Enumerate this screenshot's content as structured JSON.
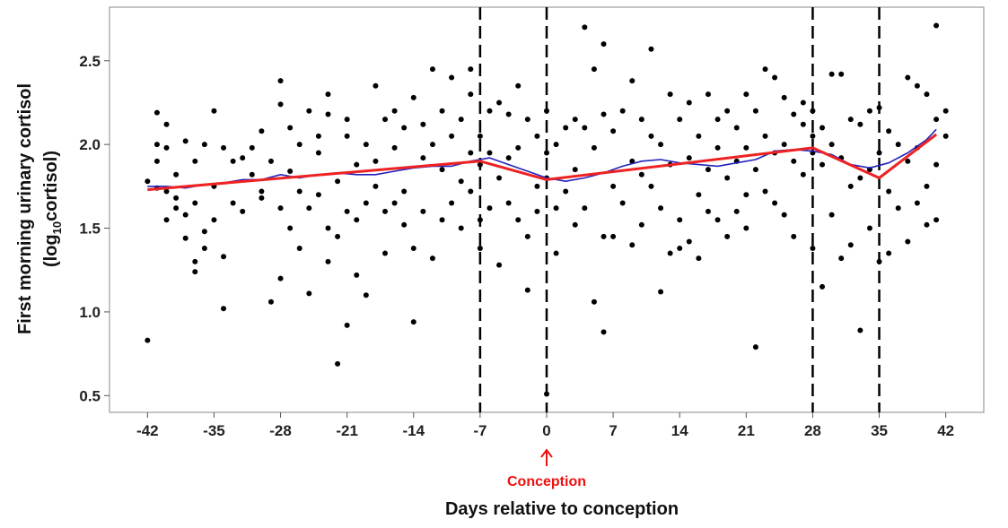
{
  "chart_data": {
    "type": "scatter",
    "title": "",
    "xlabel": "Days relative to conception",
    "ylabel": {
      "line1": "First morning urinary cortisol",
      "line2_prefix": "(log",
      "line2_sub": "10",
      "line2_suffix": "cortisol)"
    },
    "xlim": [
      -46,
      46
    ],
    "ylim": [
      0.4,
      2.82
    ],
    "xticks": [
      -42,
      -35,
      -28,
      -21,
      -14,
      -7,
      0,
      7,
      14,
      21,
      28,
      35,
      42
    ],
    "yticks": [
      0.5,
      1.0,
      1.5,
      2.0,
      2.5
    ],
    "ytick_labels": [
      "0.5",
      "1.0",
      "1.5",
      "2.0",
      "2.5"
    ],
    "vlines": [
      -7,
      0,
      28,
      35
    ],
    "annotation": {
      "text": "Conception",
      "x": 0,
      "color": "#ee1111"
    },
    "series": [
      {
        "style": "scatter",
        "color": "#000000",
        "points": [
          [
            -42,
            1.78
          ],
          [
            -42,
            0.83
          ],
          [
            -41,
            1.74
          ],
          [
            -41,
            1.9
          ],
          [
            -41,
            2.0
          ],
          [
            -41,
            2.19
          ],
          [
            -40,
            1.72
          ],
          [
            -40,
            1.55
          ],
          [
            -40,
            1.98
          ],
          [
            -40,
            2.12
          ],
          [
            -39,
            1.68
          ],
          [
            -39,
            1.82
          ],
          [
            -39,
            1.62
          ],
          [
            -38,
            1.44
          ],
          [
            -38,
            1.58
          ],
          [
            -38,
            2.02
          ],
          [
            -37,
            1.9
          ],
          [
            -37,
            1.65
          ],
          [
            -37,
            1.3
          ],
          [
            -37,
            1.24
          ],
          [
            -36,
            2.0
          ],
          [
            -36,
            1.48
          ],
          [
            -36,
            1.38
          ],
          [
            -35,
            2.2
          ],
          [
            -35,
            1.75
          ],
          [
            -35,
            1.55
          ],
          [
            -34,
            1.98
          ],
          [
            -34,
            1.02
          ],
          [
            -34,
            1.33
          ],
          [
            -33,
            1.9
          ],
          [
            -33,
            1.65
          ],
          [
            -32,
            1.92
          ],
          [
            -32,
            1.6
          ],
          [
            -31,
            1.98
          ],
          [
            -31,
            1.82
          ],
          [
            -30,
            2.08
          ],
          [
            -30,
            1.72
          ],
          [
            -30,
            1.68
          ],
          [
            -29,
            1.9
          ],
          [
            -29,
            1.06
          ],
          [
            -28,
            2.38
          ],
          [
            -28,
            2.24
          ],
          [
            -28,
            1.62
          ],
          [
            -28,
            1.2
          ],
          [
            -27,
            2.1
          ],
          [
            -27,
            1.84
          ],
          [
            -27,
            1.5
          ],
          [
            -26,
            2.0
          ],
          [
            -26,
            1.72
          ],
          [
            -26,
            1.38
          ],
          [
            -25,
            2.2
          ],
          [
            -25,
            1.62
          ],
          [
            -25,
            1.11
          ],
          [
            -24,
            2.05
          ],
          [
            -24,
            1.95
          ],
          [
            -24,
            1.7
          ],
          [
            -23,
            2.3
          ],
          [
            -23,
            2.18
          ],
          [
            -23,
            1.5
          ],
          [
            -23,
            1.3
          ],
          [
            -22,
            0.69
          ],
          [
            -22,
            1.78
          ],
          [
            -22,
            1.45
          ],
          [
            -21,
            2.15
          ],
          [
            -21,
            2.05
          ],
          [
            -21,
            1.6
          ],
          [
            -21,
            0.92
          ],
          [
            -20,
            1.88
          ],
          [
            -20,
            1.55
          ],
          [
            -20,
            1.22
          ],
          [
            -19,
            2.0
          ],
          [
            -19,
            1.65
          ],
          [
            -19,
            1.1
          ],
          [
            -18,
            2.35
          ],
          [
            -18,
            1.9
          ],
          [
            -18,
            1.75
          ],
          [
            -17,
            2.15
          ],
          [
            -17,
            1.6
          ],
          [
            -17,
            1.35
          ],
          [
            -16,
            2.2
          ],
          [
            -16,
            1.98
          ],
          [
            -16,
            1.65
          ],
          [
            -15,
            2.1
          ],
          [
            -15,
            1.72
          ],
          [
            -15,
            1.52
          ],
          [
            -14,
            2.28
          ],
          [
            -14,
            1.38
          ],
          [
            -14,
            0.94
          ],
          [
            -13,
            2.12
          ],
          [
            -13,
            1.92
          ],
          [
            -13,
            1.6
          ],
          [
            -12,
            2.45
          ],
          [
            -12,
            2.0
          ],
          [
            -12,
            1.32
          ],
          [
            -11,
            2.2
          ],
          [
            -11,
            1.85
          ],
          [
            -11,
            1.55
          ],
          [
            -10,
            2.4
          ],
          [
            -10,
            2.05
          ],
          [
            -10,
            1.65
          ],
          [
            -9,
            2.15
          ],
          [
            -9,
            1.78
          ],
          [
            -9,
            1.5
          ],
          [
            -8,
            2.45
          ],
          [
            -8,
            2.3
          ],
          [
            -8,
            1.95
          ],
          [
            -8,
            1.72
          ],
          [
            -7,
            2.05
          ],
          [
            -7,
            1.88
          ],
          [
            -7,
            1.55
          ],
          [
            -7,
            1.38
          ],
          [
            -6,
            2.2
          ],
          [
            -6,
            1.95
          ],
          [
            -6,
            1.62
          ],
          [
            -5,
            2.25
          ],
          [
            -5,
            1.8
          ],
          [
            -5,
            1.28
          ],
          [
            -4,
            2.18
          ],
          [
            -4,
            1.92
          ],
          [
            -4,
            1.65
          ],
          [
            -3,
            2.35
          ],
          [
            -3,
            1.98
          ],
          [
            -3,
            1.55
          ],
          [
            -2,
            2.15
          ],
          [
            -2,
            1.45
          ],
          [
            -2,
            1.13
          ],
          [
            -1,
            2.05
          ],
          [
            -1,
            1.75
          ],
          [
            -1,
            1.6
          ],
          [
            0,
            2.2
          ],
          [
            0,
            1.95
          ],
          [
            0,
            1.8
          ],
          [
            0,
            0.51
          ],
          [
            1,
            2.0
          ],
          [
            1,
            1.62
          ],
          [
            1,
            1.35
          ],
          [
            2,
            2.1
          ],
          [
            2,
            1.72
          ],
          [
            3,
            2.15
          ],
          [
            3,
            1.85
          ],
          [
            3,
            1.52
          ],
          [
            4,
            2.7
          ],
          [
            4,
            2.1
          ],
          [
            4,
            1.62
          ],
          [
            5,
            2.45
          ],
          [
            5,
            1.98
          ],
          [
            5,
            1.06
          ],
          [
            6,
            2.6
          ],
          [
            6,
            2.18
          ],
          [
            6,
            1.45
          ],
          [
            6,
            0.88
          ],
          [
            7,
            2.08
          ],
          [
            7,
            1.75
          ],
          [
            7,
            1.45
          ],
          [
            8,
            2.2
          ],
          [
            8,
            1.65
          ],
          [
            9,
            2.38
          ],
          [
            9,
            1.9
          ],
          [
            9,
            1.4
          ],
          [
            10,
            2.15
          ],
          [
            10,
            1.82
          ],
          [
            10,
            1.52
          ],
          [
            11,
            2.57
          ],
          [
            11,
            2.05
          ],
          [
            11,
            1.75
          ],
          [
            12,
            2.0
          ],
          [
            12,
            1.62
          ],
          [
            12,
            1.12
          ],
          [
            13,
            2.3
          ],
          [
            13,
            1.88
          ],
          [
            13,
            1.35
          ],
          [
            14,
            2.15
          ],
          [
            14,
            1.55
          ],
          [
            14,
            1.38
          ],
          [
            15,
            2.25
          ],
          [
            15,
            1.92
          ],
          [
            15,
            1.42
          ],
          [
            16,
            2.05
          ],
          [
            16,
            1.7
          ],
          [
            16,
            1.32
          ],
          [
            17,
            2.3
          ],
          [
            17,
            1.85
          ],
          [
            17,
            1.6
          ],
          [
            18,
            2.15
          ],
          [
            18,
            1.98
          ],
          [
            18,
            1.55
          ],
          [
            19,
            2.2
          ],
          [
            19,
            1.8
          ],
          [
            19,
            1.45
          ],
          [
            20,
            2.1
          ],
          [
            20,
            1.9
          ],
          [
            20,
            1.6
          ],
          [
            21,
            2.3
          ],
          [
            21,
            1.98
          ],
          [
            21,
            1.7
          ],
          [
            21,
            1.5
          ],
          [
            22,
            2.2
          ],
          [
            22,
            1.85
          ],
          [
            22,
            0.79
          ],
          [
            23,
            2.45
          ],
          [
            23,
            2.05
          ],
          [
            23,
            1.72
          ],
          [
            24,
            2.4
          ],
          [
            24,
            1.95
          ],
          [
            24,
            1.65
          ],
          [
            25,
            2.28
          ],
          [
            25,
            2.0
          ],
          [
            25,
            1.58
          ],
          [
            26,
            2.18
          ],
          [
            26,
            1.9
          ],
          [
            26,
            1.45
          ],
          [
            27,
            2.25
          ],
          [
            27,
            2.12
          ],
          [
            27,
            1.82
          ],
          [
            28,
            2.2
          ],
          [
            28,
            2.05
          ],
          [
            28,
            1.95
          ],
          [
            28,
            1.38
          ],
          [
            29,
            2.1
          ],
          [
            29,
            1.88
          ],
          [
            29,
            1.15
          ],
          [
            30,
            2.42
          ],
          [
            30,
            2.0
          ],
          [
            30,
            1.58
          ],
          [
            31,
            2.42
          ],
          [
            31,
            1.92
          ],
          [
            31,
            1.32
          ],
          [
            32,
            2.15
          ],
          [
            32,
            1.75
          ],
          [
            32,
            1.4
          ],
          [
            33,
            2.12
          ],
          [
            33,
            1.8
          ],
          [
            33,
            0.89
          ],
          [
            34,
            2.2
          ],
          [
            34,
            1.85
          ],
          [
            34,
            1.5
          ],
          [
            35,
            2.22
          ],
          [
            35,
            1.95
          ],
          [
            35,
            1.3
          ],
          [
            36,
            2.08
          ],
          [
            36,
            1.72
          ],
          [
            36,
            1.35
          ],
          [
            37,
            2.0
          ],
          [
            37,
            1.62
          ],
          [
            38,
            2.4
          ],
          [
            38,
            1.9
          ],
          [
            38,
            1.42
          ],
          [
            39,
            2.35
          ],
          [
            39,
            1.98
          ],
          [
            39,
            1.65
          ],
          [
            40,
            2.3
          ],
          [
            40,
            1.75
          ],
          [
            40,
            1.52
          ],
          [
            41,
            2.71
          ],
          [
            41,
            2.15
          ],
          [
            41,
            1.88
          ],
          [
            41,
            1.55
          ],
          [
            42,
            2.2
          ],
          [
            42,
            2.05
          ]
        ]
      },
      {
        "style": "line",
        "color": "#2222bb",
        "points": [
          [
            -42,
            1.75
          ],
          [
            -40,
            1.75
          ],
          [
            -38,
            1.74
          ],
          [
            -36,
            1.76
          ],
          [
            -34,
            1.77
          ],
          [
            -32,
            1.79
          ],
          [
            -30,
            1.79
          ],
          [
            -28,
            1.82
          ],
          [
            -26,
            1.8
          ],
          [
            -24,
            1.82
          ],
          [
            -22,
            1.83
          ],
          [
            -20,
            1.82
          ],
          [
            -18,
            1.82
          ],
          [
            -16,
            1.84
          ],
          [
            -14,
            1.86
          ],
          [
            -12,
            1.87
          ],
          [
            -10,
            1.87
          ],
          [
            -8,
            1.9
          ],
          [
            -6,
            1.92
          ],
          [
            -4,
            1.88
          ],
          [
            -2,
            1.84
          ],
          [
            0,
            1.8
          ],
          [
            2,
            1.78
          ],
          [
            4,
            1.8
          ],
          [
            6,
            1.83
          ],
          [
            8,
            1.87
          ],
          [
            10,
            1.9
          ],
          [
            12,
            1.91
          ],
          [
            14,
            1.89
          ],
          [
            16,
            1.88
          ],
          [
            18,
            1.87
          ],
          [
            20,
            1.89
          ],
          [
            22,
            1.91
          ],
          [
            24,
            1.96
          ],
          [
            26,
            1.97
          ],
          [
            28,
            1.96
          ],
          [
            30,
            1.94
          ],
          [
            32,
            1.88
          ],
          [
            34,
            1.86
          ],
          [
            36,
            1.89
          ],
          [
            38,
            1.95
          ],
          [
            40,
            2.03
          ],
          [
            41,
            2.09
          ]
        ]
      },
      {
        "style": "line",
        "color": "#ee2222",
        "points": [
          [
            -42,
            1.73
          ],
          [
            -7,
            1.9
          ],
          [
            0,
            1.79
          ],
          [
            28,
            1.98
          ],
          [
            35,
            1.8
          ],
          [
            41,
            2.06
          ]
        ]
      }
    ]
  }
}
